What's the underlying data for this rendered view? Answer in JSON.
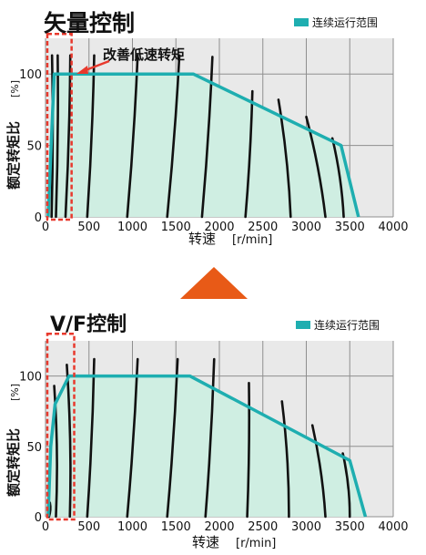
{
  "colors": {
    "plot_bg": "#e9e9e9",
    "grid": "#8f8f8f",
    "region_fill": "#cfeee2",
    "region_stroke": "#1eaeb0",
    "torque_curve": "#111111",
    "highlight": "#e8392d",
    "arrow_up": "#e85a17"
  },
  "chart_data": [
    {
      "type": "line",
      "title": "矢量控制",
      "annotation": "改善低速转矩",
      "xlabel": "转速",
      "xunit": "[r/min]",
      "ylabel": "额定转矩比",
      "yunit": "[%]",
      "xlim": [
        0,
        4000
      ],
      "ylim": [
        0,
        125
      ],
      "x_ticks": [
        0,
        500,
        1000,
        1500,
        2000,
        2500,
        3000,
        3500,
        4000
      ],
      "y_ticks": [
        0,
        50,
        100
      ],
      "grid": true,
      "legend_position": "top-right",
      "series": [
        {
          "name": "连续运行范围",
          "points": [
            [
              30,
              0
            ],
            [
              100,
              100
            ],
            [
              1700,
              100
            ],
            [
              3400,
              50
            ],
            [
              3600,
              0
            ]
          ]
        }
      ],
      "torque_curves": [
        {
          "base": 70,
          "top_rpm": 75,
          "top_pct": 113
        },
        {
          "base": 120,
          "top_rpm": 140,
          "top_pct": 113
        },
        {
          "base": 230,
          "top_rpm": 285,
          "top_pct": 113
        },
        {
          "base": 480,
          "top_rpm": 560,
          "top_pct": 113
        },
        {
          "base": 940,
          "top_rpm": 1060,
          "top_pct": 113
        },
        {
          "base": 1400,
          "top_rpm": 1540,
          "top_pct": 113
        },
        {
          "base": 1800,
          "top_rpm": 1920,
          "top_pct": 112
        },
        {
          "base": 2300,
          "top_rpm": 2380,
          "top_pct": 88
        },
        {
          "base": 2820,
          "top_rpm": 2680,
          "top_pct": 82
        },
        {
          "base": 3220,
          "top_rpm": 3000,
          "top_pct": 70
        },
        {
          "base": 3430,
          "top_rpm": 3300,
          "top_pct": 55
        }
      ]
    },
    {
      "type": "line",
      "title": "V/F控制",
      "xlabel": "转速",
      "xunit": "[r/min]",
      "ylabel": "额定转矩比",
      "yunit": "[%]",
      "xlim": [
        0,
        4000
      ],
      "ylim": [
        0,
        125
      ],
      "x_ticks": [
        0,
        500,
        1000,
        1500,
        2000,
        2500,
        3000,
        3500,
        4000
      ],
      "y_ticks": [
        0,
        50,
        100
      ],
      "grid": true,
      "legend_position": "top-right",
      "series": [
        {
          "name": "连续运行范围",
          "points": [
            [
              30,
              0
            ],
            [
              60,
              50
            ],
            [
              110,
              80
            ],
            [
              270,
              100
            ],
            [
              1660,
              100
            ],
            [
              3500,
              40
            ],
            [
              3680,
              0
            ]
          ]
        }
      ],
      "torque_curves": [
        {
          "base": 40,
          "top_rpm": 50,
          "top_pct": 10
        },
        {
          "base": 120,
          "top_rpm": 100,
          "top_pct": 93
        },
        {
          "base": 280,
          "top_rpm": 245,
          "top_pct": 108
        },
        {
          "base": 480,
          "top_rpm": 560,
          "top_pct": 112
        },
        {
          "base": 940,
          "top_rpm": 1060,
          "top_pct": 112
        },
        {
          "base": 1400,
          "top_rpm": 1520,
          "top_pct": 112
        },
        {
          "base": 1840,
          "top_rpm": 1940,
          "top_pct": 112
        },
        {
          "base": 2320,
          "top_rpm": 2340,
          "top_pct": 95
        },
        {
          "base": 2800,
          "top_rpm": 2720,
          "top_pct": 82
        },
        {
          "base": 3220,
          "top_rpm": 3070,
          "top_pct": 65
        },
        {
          "base": 3500,
          "top_rpm": 3420,
          "top_pct": 45
        }
      ]
    }
  ]
}
